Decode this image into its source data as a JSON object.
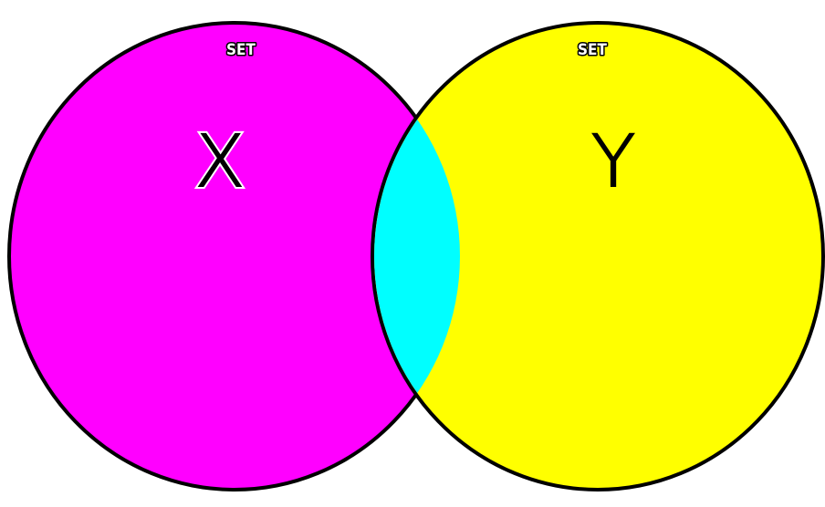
{
  "diagram": {
    "sets": [
      {
        "id": "x",
        "caption": "SET",
        "letter": "X",
        "fill": "#ff00ff",
        "caption_color": "#ffffff",
        "letter_color": "#000000",
        "letter_outline": "#ffffff"
      },
      {
        "id": "y",
        "caption": "SET",
        "letter": "Y",
        "fill": "#ffff00",
        "caption_color": "#ffffff",
        "letter_color": "#000000",
        "letter_outline": "#ffff00"
      }
    ],
    "intersection": {
      "fill": "#00ffff"
    },
    "outline_color": "#000000",
    "background": "#ffffff"
  }
}
